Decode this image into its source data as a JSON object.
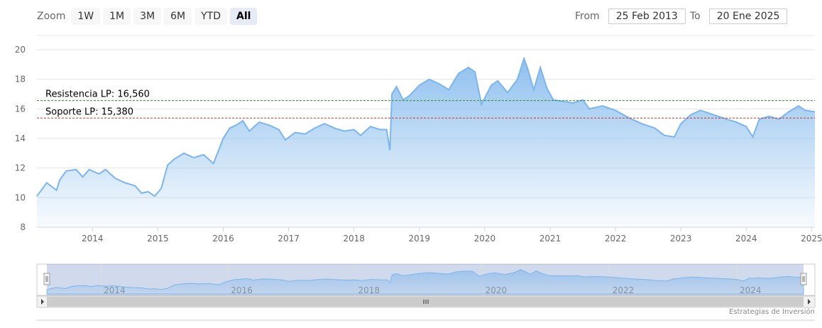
{
  "zoom": {
    "label": "Zoom",
    "buttons": [
      "1W",
      "1M",
      "3M",
      "6M",
      "YTD",
      "All"
    ],
    "active": "All"
  },
  "range": {
    "from_label": "From",
    "from_value": "25 Feb 2013",
    "to_label": "To",
    "to_value": "20 Ene 2025"
  },
  "credit": "Estrategias de Inversión",
  "colors": {
    "line": "#7cb5ec",
    "resistance": "#2e8b2e",
    "support": "#c0392b",
    "grid": "#e6e6e6"
  },
  "chart_data": {
    "type": "area",
    "title": "",
    "xlabel": "",
    "ylabel": "",
    "ylim": [
      8,
      20
    ],
    "xlim": [
      2013.15,
      2025.05
    ],
    "y_ticks": [
      8,
      10,
      12,
      14,
      16,
      18,
      20
    ],
    "x_ticks": [
      "2014",
      "2015",
      "2016",
      "2017",
      "2018",
      "2019",
      "2020",
      "2021",
      "2022",
      "2023",
      "2024",
      "2025"
    ],
    "navigator_ticks": [
      "2014",
      "2016",
      "2018",
      "2020",
      "2022",
      "2024"
    ],
    "reference_lines": [
      {
        "label": "Resistencia LP: 16,560",
        "value": 16.56,
        "style": "dashed",
        "color": "#2e8b2e"
      },
      {
        "label": "Soporte LP: 15,380",
        "value": 15.38,
        "style": "dashed",
        "color": "#c0392b"
      }
    ],
    "series": [
      {
        "x": [
          2013.15,
          2013.3,
          2013.45,
          2013.5,
          2013.6,
          2013.75,
          2013.85,
          2013.95,
          2014.1,
          2014.2,
          2014.35,
          2014.5,
          2014.65,
          2014.75,
          2014.85,
          2014.95,
          2015.05,
          2015.15,
          2015.25,
          2015.4,
          2015.55,
          2015.7,
          2015.85,
          2016.0,
          2016.1,
          2016.2,
          2016.3,
          2016.4,
          2016.55,
          2016.7,
          2016.85,
          2016.95,
          2017.1,
          2017.25,
          2017.4,
          2017.55,
          2017.7,
          2017.85,
          2018.0,
          2018.1,
          2018.25,
          2018.4,
          2018.5,
          2018.55,
          2018.58,
          2018.65,
          2018.75,
          2018.85,
          2019.0,
          2019.15,
          2019.3,
          2019.45,
          2019.6,
          2019.75,
          2019.85,
          2019.95,
          2020.1,
          2020.2,
          2020.35,
          2020.5,
          2020.6,
          2020.65,
          2020.75,
          2020.85,
          2020.95,
          2021.05,
          2021.2,
          2021.35,
          2021.5,
          2021.6,
          2021.8,
          2022.0,
          2022.2,
          2022.4,
          2022.6,
          2022.75,
          2022.9,
          2023.0,
          2023.15,
          2023.3,
          2023.5,
          2023.7,
          2023.85,
          2024.0,
          2024.1,
          2024.2,
          2024.35,
          2024.5,
          2024.65,
          2024.8,
          2024.9,
          2025.05
        ],
        "values": [
          10.1,
          11.0,
          10.5,
          11.2,
          11.8,
          11.9,
          11.4,
          11.9,
          11.6,
          11.9,
          11.3,
          11.0,
          10.8,
          10.3,
          10.4,
          10.1,
          10.6,
          12.2,
          12.6,
          13.0,
          12.7,
          12.9,
          12.3,
          14.0,
          14.7,
          14.9,
          15.2,
          14.5,
          15.1,
          14.9,
          14.6,
          13.9,
          14.4,
          14.3,
          14.7,
          15.0,
          14.7,
          14.5,
          14.6,
          14.2,
          14.8,
          14.6,
          14.6,
          13.2,
          17.0,
          17.5,
          16.6,
          16.9,
          17.6,
          18.0,
          17.7,
          17.3,
          18.4,
          18.8,
          18.5,
          16.3,
          17.6,
          17.9,
          17.1,
          18.0,
          19.4,
          18.8,
          17.3,
          18.8,
          17.4,
          16.6,
          16.5,
          16.4,
          16.6,
          16.0,
          16.2,
          15.9,
          15.4,
          15.0,
          14.7,
          14.2,
          14.1,
          15.0,
          15.6,
          15.9,
          15.6,
          15.3,
          15.1,
          14.8,
          14.1,
          15.3,
          15.5,
          15.3,
          15.8,
          16.2,
          15.9,
          15.8
        ]
      }
    ]
  }
}
